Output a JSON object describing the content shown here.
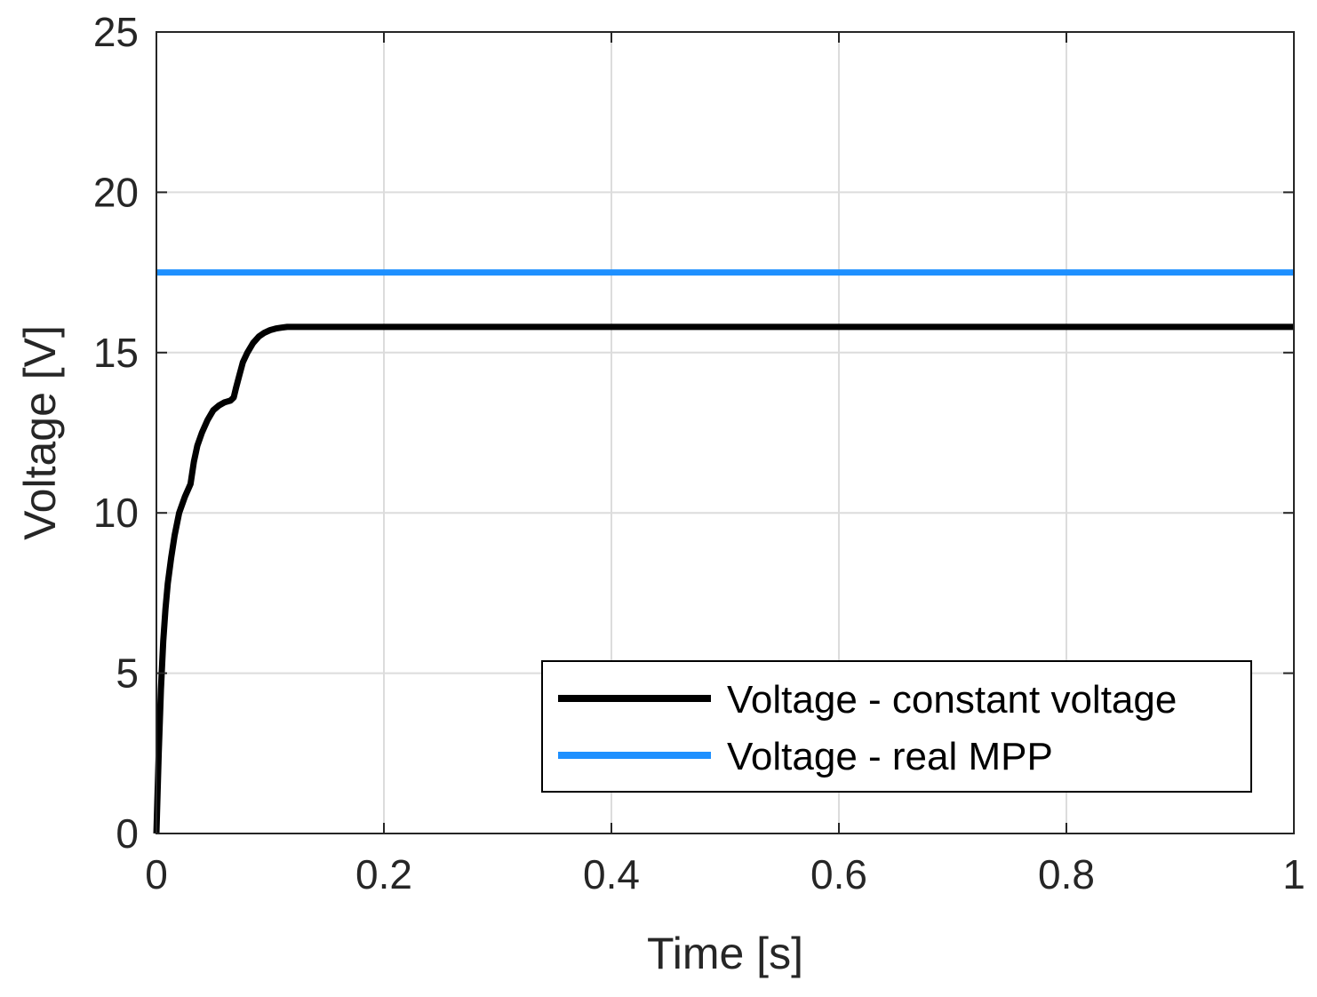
{
  "chart_data": {
    "type": "line",
    "title": "",
    "xlabel": "Time [s]",
    "ylabel": "Voltage [V]",
    "xlim": [
      0,
      1
    ],
    "ylim": [
      0,
      25
    ],
    "xticks": [
      0,
      0.2,
      0.4,
      0.6,
      0.8,
      1
    ],
    "xtick_labels": [
      "0",
      "0.2",
      "0.4",
      "0.6",
      "0.8",
      "1"
    ],
    "yticks": [
      0,
      5,
      10,
      15,
      20,
      25
    ],
    "ytick_labels": [
      "0",
      "5",
      "10",
      "15",
      "20",
      "25"
    ],
    "grid": true,
    "legend_position": "bottom-right",
    "series": [
      {
        "name": "Voltage - constant voltage",
        "color": "#000000",
        "x": [
          0,
          0.002,
          0.004,
          0.006,
          0.008,
          0.01,
          0.013,
          0.016,
          0.02,
          0.025,
          0.03,
          0.033,
          0.036,
          0.04,
          0.045,
          0.05,
          0.055,
          0.06,
          0.065,
          0.068,
          0.07,
          0.073,
          0.076,
          0.08,
          0.085,
          0.09,
          0.095,
          0.1,
          0.105,
          0.11,
          0.115,
          0.12,
          0.13,
          0.15,
          0.2,
          0.3,
          0.4,
          0.5,
          0.6,
          0.7,
          0.8,
          0.9,
          1.0
        ],
        "values": [
          0,
          2.5,
          4.5,
          6.0,
          7.0,
          7.8,
          8.6,
          9.3,
          10.0,
          10.5,
          10.9,
          11.6,
          12.1,
          12.5,
          12.9,
          13.2,
          13.35,
          13.45,
          13.5,
          13.6,
          13.9,
          14.3,
          14.7,
          15.0,
          15.3,
          15.5,
          15.62,
          15.7,
          15.75,
          15.78,
          15.8,
          15.8,
          15.8,
          15.8,
          15.8,
          15.8,
          15.8,
          15.8,
          15.8,
          15.8,
          15.8,
          15.8,
          15.8
        ]
      },
      {
        "name": "Voltage - real MPP",
        "color": "#1e90ff",
        "x": [
          0,
          1
        ],
        "values": [
          17.5,
          17.5
        ]
      }
    ]
  }
}
